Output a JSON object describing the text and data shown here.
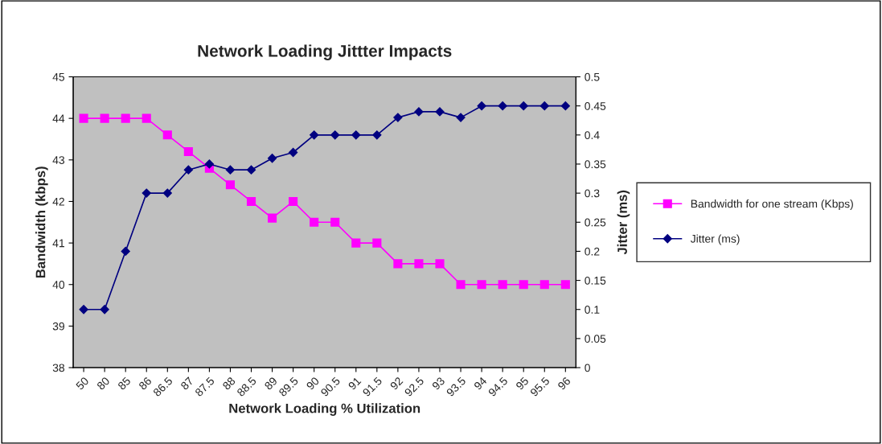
{
  "chart_data": {
    "type": "line",
    "title": "Network Loading Jittter Impacts",
    "xlabel": "Network Loading % Utilization",
    "ylabel": "Bandwidth (kbps)",
    "y2label": "Jitter (ms)",
    "categories": [
      "50",
      "80",
      "85",
      "86",
      "86.5",
      "87",
      "87.5",
      "88",
      "88.5",
      "89",
      "89.5",
      "90",
      "90.5",
      "91",
      "91.5",
      "92",
      "92.5",
      "93",
      "93.5",
      "94",
      "94.5",
      "95",
      "95.5",
      "96"
    ],
    "series": [
      {
        "name": "Bandwidth for one stream (Kbps)",
        "color": "#ff00ff",
        "marker": "square",
        "values": [
          44,
          44,
          44,
          44,
          43.6,
          43.2,
          42.8,
          42.4,
          42,
          41.6,
          42,
          41.5,
          41.5,
          41,
          41,
          40.5,
          40.5,
          40.5,
          40,
          40,
          40,
          40,
          40,
          40
        ]
      },
      {
        "name": "Jitter (ms)",
        "color": "#000080",
        "marker": "diamond",
        "axis": "y2",
        "values": [
          0.1,
          0.1,
          0.2,
          0.3,
          0.3,
          0.34,
          0.35,
          0.34,
          0.34,
          0.36,
          0.37,
          0.4,
          0.4,
          0.4,
          0.4,
          0.43,
          0.44,
          0.44,
          0.43,
          0.45,
          0.45,
          0.45,
          0.45,
          0.45
        ]
      }
    ],
    "ylim": [
      38,
      45
    ],
    "yticks": [
      38,
      39,
      40,
      41,
      42,
      43,
      44,
      45
    ],
    "y2lim": [
      0,
      0.5
    ],
    "y2ticks": [
      0,
      0.05,
      0.1,
      0.15,
      0.2,
      0.25,
      0.3,
      0.35,
      0.4,
      0.45,
      0.5
    ],
    "grid": false,
    "legend": "right",
    "line_style": "solid"
  }
}
